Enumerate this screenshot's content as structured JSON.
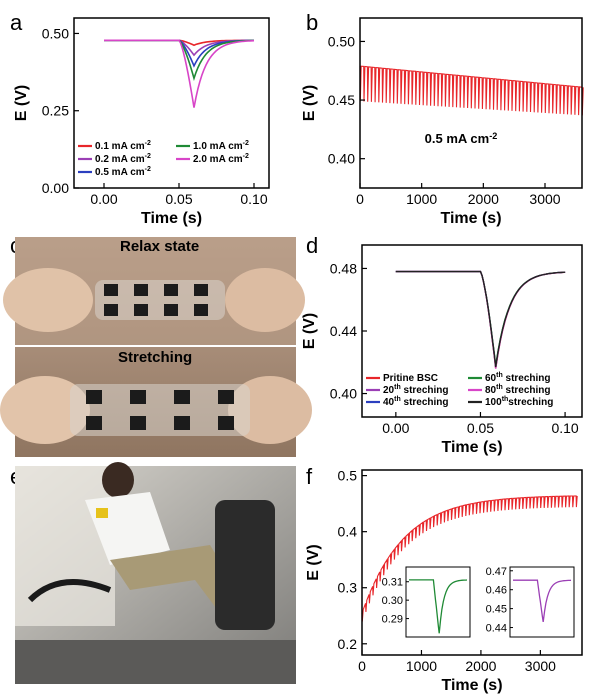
{
  "panel_labels": {
    "a": "a",
    "b": "b",
    "c": "c",
    "d": "d",
    "e": "e",
    "f": "f"
  },
  "photo_c": {
    "top_label": "Relax state",
    "bottom_label": "Stretching"
  },
  "colors": {
    "red": "#e8262a",
    "purple": "#9b3fb5",
    "blue": "#2b3fbf",
    "green": "#1f8a35",
    "magenta": "#d845c8",
    "dark": "#222222",
    "axis": "#000000"
  },
  "chart_data": [
    {
      "id": "a",
      "type": "line",
      "xlabel": "Time (s)",
      "ylabel": "E (V)",
      "xlim": [
        -0.02,
        0.11
      ],
      "ylim": [
        0.0,
        0.55
      ],
      "xticks": [
        "0.00",
        "0.05",
        "0.10"
      ],
      "xtick_values": [
        0,
        0.05,
        0.1
      ],
      "yticks": [
        "0.00",
        "0.25",
        "0.50"
      ],
      "ytick_values": [
        0,
        0.25,
        0.5
      ],
      "legend": [
        {
          "prefix": "0.1 mA cm",
          "sup": "-2",
          "color": "#e8262a"
        },
        {
          "prefix": "0.2 mA cm",
          "sup": "-2",
          "color": "#9b3fb5"
        },
        {
          "prefix": "0.5 mA cm",
          "sup": "-2",
          "color": "#2b3fbf"
        },
        {
          "prefix": "1.0 mA cm",
          "sup": "-2",
          "color": "#1f8a35"
        },
        {
          "prefix": "2.0 mA cm",
          "sup": "-2",
          "color": "#d845c8"
        }
      ],
      "series": [
        {
          "name": "0.1 mA cm-2",
          "color": "#e8262a",
          "baseline": 0.478,
          "dip": 0.462
        },
        {
          "name": "0.2 mA cm-2",
          "color": "#9b3fb5",
          "baseline": 0.478,
          "dip": 0.43
        },
        {
          "name": "0.5 mA cm-2",
          "color": "#2b3fbf",
          "baseline": 0.478,
          "dip": 0.395
        },
        {
          "name": "1.0 mA cm-2",
          "color": "#1f8a35",
          "baseline": 0.478,
          "dip": 0.355
        },
        {
          "name": "2.0 mA cm-2",
          "color": "#d845c8",
          "baseline": 0.478,
          "dip": 0.26
        }
      ],
      "pulse_start": 0.05,
      "pulse_min": 0.06,
      "x_start": 0.0,
      "x_end": 0.1
    },
    {
      "id": "b",
      "type": "line",
      "xlabel": "Time (s)",
      "ylabel": "E (V)",
      "xlim": [
        0,
        3600
      ],
      "ylim": [
        0.375,
        0.52
      ],
      "xticks": [
        "0",
        "1000",
        "2000",
        "3000"
      ],
      "xtick_values": [
        0,
        1000,
        2000,
        3000
      ],
      "yticks": [
        "0.40",
        "0.45",
        "0.50"
      ],
      "ytick_values": [
        0.4,
        0.45,
        0.5
      ],
      "annotation": {
        "prefix": "0.5 mA cm",
        "sup": "-2"
      },
      "upper": [
        [
          0,
          0.479
        ],
        [
          3600,
          0.461
        ]
      ],
      "lower": [
        [
          0,
          0.449
        ],
        [
          3600,
          0.437
        ]
      ],
      "color": "#e8262a"
    },
    {
      "id": "d",
      "type": "line",
      "xlabel": "Time (s)",
      "ylabel": "E (V)",
      "xlim": [
        -0.02,
        0.11
      ],
      "ylim": [
        0.385,
        0.495
      ],
      "xticks": [
        "0.00",
        "0.05",
        "0.10"
      ],
      "xtick_values": [
        0,
        0.05,
        0.1
      ],
      "yticks": [
        "0.40",
        "0.44",
        "0.48"
      ],
      "ytick_values": [
        0.4,
        0.44,
        0.48
      ],
      "legend": [
        {
          "prefix": "Pritine BSC",
          "sup": "",
          "suffix": "",
          "color": "#e8262a"
        },
        {
          "prefix": "20",
          "sup": "th",
          "suffix": " streching",
          "color": "#9b3fb5"
        },
        {
          "prefix": "40",
          "sup": "th",
          "suffix": " streching",
          "color": "#2b3fbf"
        },
        {
          "prefix": "60",
          "sup": "th",
          "suffix": " streching",
          "color": "#1f8a35"
        },
        {
          "prefix": "80",
          "sup": "th",
          "suffix": " streching",
          "color": "#d845c8"
        },
        {
          "prefix": "100",
          "sup": "th",
          "suffix": "streching",
          "color": "#222222"
        }
      ],
      "series": [
        {
          "name": "Pritine BSC",
          "color": "#e8262a",
          "baseline": 0.478,
          "dip": 0.416
        },
        {
          "name": "20th streching",
          "color": "#9b3fb5",
          "baseline": 0.478,
          "dip": 0.417
        },
        {
          "name": "40th streching",
          "color": "#2b3fbf",
          "baseline": 0.478,
          "dip": 0.417
        },
        {
          "name": "60th streching",
          "color": "#1f8a35",
          "baseline": 0.478,
          "dip": 0.418
        },
        {
          "name": "80th streching",
          "color": "#d845c8",
          "baseline": 0.478,
          "dip": 0.416
        },
        {
          "name": "100th streching",
          "color": "#222222",
          "baseline": 0.478,
          "dip": 0.417
        }
      ],
      "pulse_start": 0.05,
      "pulse_min": 0.059,
      "x_start": 0.0,
      "x_end": 0.1
    },
    {
      "id": "f",
      "type": "line",
      "xlabel": "Time (s)",
      "ylabel": "E (V)",
      "xlim": [
        0,
        3700
      ],
      "ylim": [
        0.18,
        0.51
      ],
      "xticks": [
        "0",
        "1000",
        "2000",
        "3000"
      ],
      "xtick_values": [
        0,
        1000,
        2000,
        3000
      ],
      "yticks": [
        "0.2",
        "0.3",
        "0.4",
        "0.5"
      ],
      "ytick_values": [
        0.2,
        0.3,
        0.4,
        0.5
      ],
      "upper_start": 0.255,
      "upper_end": 0.465,
      "lower_start": 0.24,
      "lower_end": 0.445,
      "color": "#e8262a",
      "insets": [
        {
          "color": "#1f8a35",
          "ylim": [
            0.28,
            0.318
          ],
          "yticks": [
            "0.31",
            "0.30",
            "0.29"
          ],
          "ytick_values": [
            0.31,
            0.3,
            0.29
          ],
          "baseline": 0.311,
          "dip": 0.282
        },
        {
          "color": "#9b3fb5",
          "ylim": [
            0.435,
            0.472
          ],
          "yticks": [
            "0.47",
            "0.46",
            "0.45",
            "0.44"
          ],
          "ytick_values": [
            0.47,
            0.46,
            0.45,
            0.44
          ],
          "baseline": 0.465,
          "dip": 0.443
        }
      ]
    }
  ]
}
